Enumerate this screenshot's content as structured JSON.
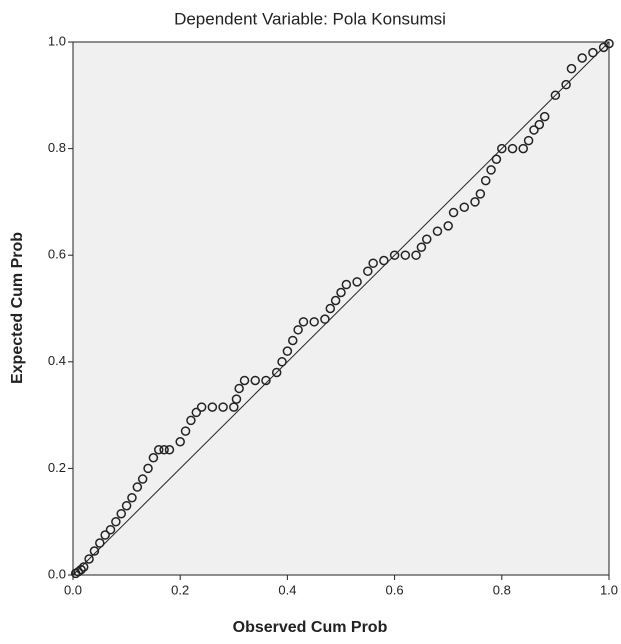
{
  "chart_data": {
    "type": "scatter",
    "title": "Dependent Variable: Pola Konsumsi",
    "xlabel": "Observed Cum Prob",
    "ylabel": "Expected Cum Prob",
    "xlim": [
      0,
      1
    ],
    "ylim": [
      0,
      1
    ],
    "xticks": [
      {
        "value": 0,
        "label": "0.0"
      },
      0.2,
      0.4,
      0.6,
      0.8,
      {
        "value": 1,
        "label": "1.0"
      }
    ],
    "yticks": [
      {
        "value": 0,
        "label": "0.0"
      },
      0.2,
      0.4,
      0.6,
      0.8,
      {
        "value": 1,
        "label": "1.0"
      }
    ],
    "reference_line": true,
    "series": [
      {
        "color": "#222222",
        "x": [
          0.005,
          0.01,
          0.015,
          0.02,
          0.03,
          0.04,
          0.05,
          0.06,
          0.07,
          0.08,
          0.09,
          0.1,
          0.11,
          0.12,
          0.13,
          0.14,
          0.15,
          0.16,
          0.17,
          0.18,
          0.2,
          0.21,
          0.22,
          0.23,
          0.24,
          0.26,
          0.28,
          0.3,
          0.305,
          0.31,
          0.32,
          0.34,
          0.36,
          0.38,
          0.39,
          0.4,
          0.41,
          0.42,
          0.43,
          0.45,
          0.47,
          0.48,
          0.49,
          0.5,
          0.51,
          0.53,
          0.55,
          0.56,
          0.58,
          0.6,
          0.62,
          0.64,
          0.65,
          0.66,
          0.68,
          0.7,
          0.71,
          0.73,
          0.75,
          0.76,
          0.77,
          0.78,
          0.79,
          0.8,
          0.82,
          0.84,
          0.85,
          0.86,
          0.87,
          0.88,
          0.9,
          0.92,
          0.93,
          0.95,
          0.97,
          0.99,
          1.0
        ],
        "values": [
          0.003,
          0.006,
          0.01,
          0.015,
          0.03,
          0.045,
          0.06,
          0.075,
          0.085,
          0.1,
          0.115,
          0.13,
          0.145,
          0.165,
          0.18,
          0.2,
          0.22,
          0.235,
          0.235,
          0.235,
          0.25,
          0.27,
          0.29,
          0.305,
          0.315,
          0.315,
          0.315,
          0.315,
          0.33,
          0.35,
          0.365,
          0.365,
          0.365,
          0.38,
          0.4,
          0.42,
          0.44,
          0.46,
          0.475,
          0.475,
          0.48,
          0.5,
          0.515,
          0.53,
          0.545,
          0.55,
          0.57,
          0.585,
          0.59,
          0.6,
          0.6,
          0.6,
          0.615,
          0.63,
          0.645,
          0.655,
          0.68,
          0.69,
          0.7,
          0.715,
          0.74,
          0.76,
          0.78,
          0.8,
          0.8,
          0.8,
          0.815,
          0.835,
          0.845,
          0.86,
          0.9,
          0.92,
          0.95,
          0.97,
          0.98,
          0.99,
          0.997
        ]
      }
    ]
  }
}
